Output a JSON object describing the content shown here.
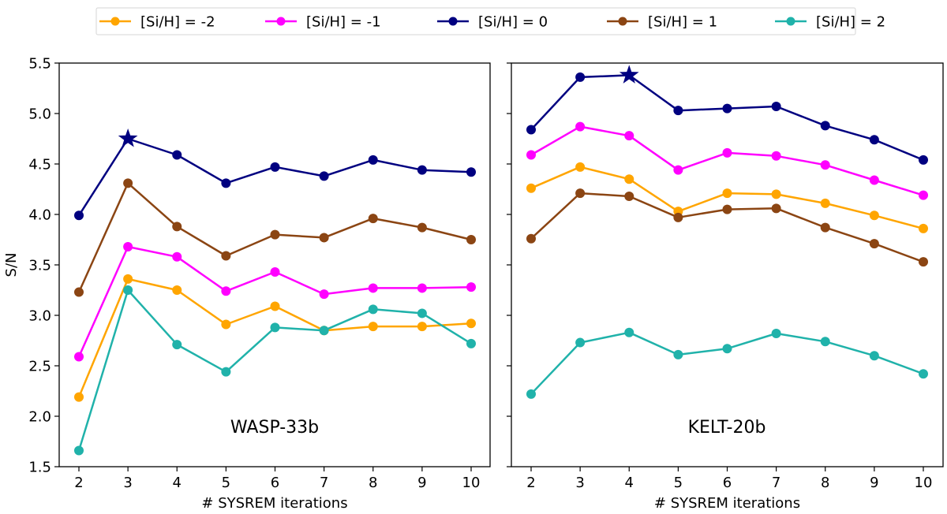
{
  "chart_data": {
    "type": "line",
    "legend": {
      "placement": "top-center",
      "entries": [
        {
          "name": "[Si/H] = -2",
          "color": "#FFA500"
        },
        {
          "name": "[Si/H] = -1",
          "color": "#FF00FF"
        },
        {
          "name": "[Si/H] = 0",
          "color": "#000080"
        },
        {
          "name": "[Si/H] = 1",
          "color": "#8B4513"
        },
        {
          "name": "[Si/H] = 2",
          "color": "#20B2AA"
        }
      ]
    },
    "ylabel": "S/N",
    "ylim": [
      1.5,
      5.5
    ],
    "yticks": [
      "1.5",
      "2.0",
      "2.5",
      "3.0",
      "3.5",
      "4.0",
      "4.5",
      "5.0",
      "5.5"
    ],
    "grid": false,
    "panels": [
      {
        "annotation": "WASP-33b",
        "xlabel": "# SYSREM iterations",
        "x": [
          2,
          3,
          4,
          5,
          6,
          7,
          8,
          9,
          10
        ],
        "xticks": [
          "2",
          "3",
          "4",
          "5",
          "6",
          "7",
          "8",
          "9",
          "10"
        ],
        "best": {
          "series": "[Si/H] = 0",
          "x": 3,
          "y": 4.75,
          "marker": "star"
        },
        "series": [
          {
            "name": "[Si/H] = -2",
            "color": "#FFA500",
            "values": [
              2.19,
              3.36,
              3.25,
              2.91,
              3.09,
              2.85,
              2.89,
              2.89,
              2.92
            ]
          },
          {
            "name": "[Si/H] = -1",
            "color": "#FF00FF",
            "values": [
              2.59,
              3.68,
              3.58,
              3.24,
              3.43,
              3.21,
              3.27,
              3.27,
              3.28
            ]
          },
          {
            "name": "[Si/H] = 0",
            "color": "#000080",
            "values": [
              3.99,
              4.75,
              4.59,
              4.31,
              4.47,
              4.38,
              4.54,
              4.44,
              4.42
            ]
          },
          {
            "name": "[Si/H] = 1",
            "color": "#8B4513",
            "values": [
              3.23,
              4.31,
              3.88,
              3.59,
              3.8,
              3.77,
              3.96,
              3.87,
              3.75
            ]
          },
          {
            "name": "[Si/H] = 2",
            "color": "#20B2AA",
            "values": [
              1.66,
              3.25,
              2.71,
              2.44,
              2.88,
              2.85,
              3.06,
              3.02,
              2.72
            ]
          }
        ]
      },
      {
        "annotation": "KELT-20b",
        "xlabel": "# SYSREM iterations",
        "x": [
          2,
          3,
          4,
          5,
          6,
          7,
          8,
          9,
          10
        ],
        "xticks": [
          "2",
          "3",
          "4",
          "5",
          "6",
          "7",
          "8",
          "9",
          "10"
        ],
        "best": {
          "series": "[Si/H] = 0",
          "x": 4,
          "y": 5.38,
          "marker": "star"
        },
        "series": [
          {
            "name": "[Si/H] = -2",
            "color": "#FFA500",
            "values": [
              4.26,
              4.47,
              4.35,
              4.03,
              4.21,
              4.2,
              4.11,
              3.99,
              3.86
            ]
          },
          {
            "name": "[Si/H] = -1",
            "color": "#FF00FF",
            "values": [
              4.59,
              4.87,
              4.78,
              4.44,
              4.61,
              4.58,
              4.49,
              4.34,
              4.19
            ]
          },
          {
            "name": "[Si/H] = 0",
            "color": "#000080",
            "values": [
              4.84,
              5.36,
              5.38,
              5.03,
              5.05,
              5.07,
              4.88,
              4.74,
              4.54
            ]
          },
          {
            "name": "[Si/H] = 1",
            "color": "#8B4513",
            "values": [
              3.76,
              4.21,
              4.18,
              3.97,
              4.05,
              4.06,
              3.87,
              3.71,
              3.53
            ]
          },
          {
            "name": "[Si/H] = 2",
            "color": "#20B2AA",
            "values": [
              2.22,
              2.73,
              2.83,
              2.61,
              2.67,
              2.82,
              2.74,
              2.6,
              2.42
            ]
          }
        ]
      }
    ]
  }
}
